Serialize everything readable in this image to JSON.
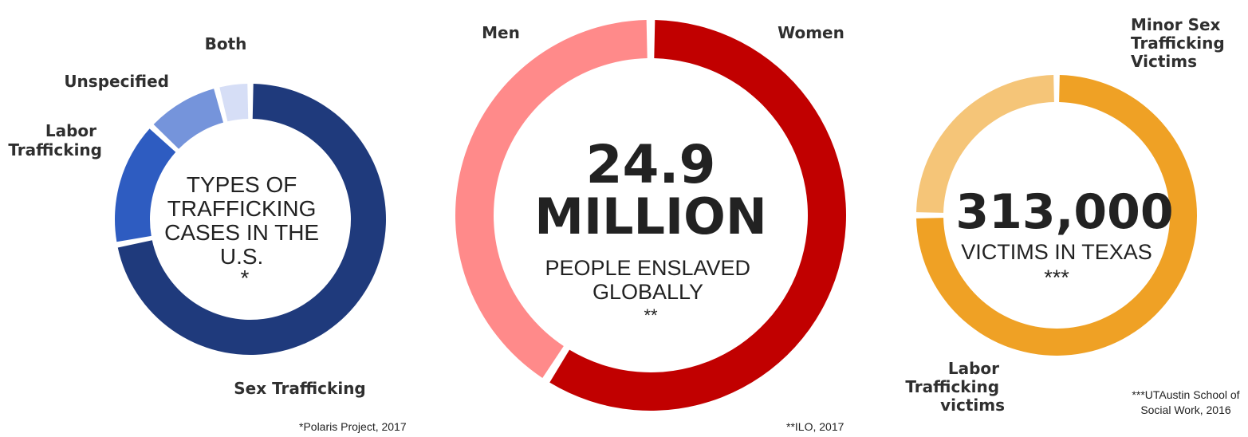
{
  "chart_data": [
    {
      "type": "pie",
      "center_text": [
        "TYPES OF",
        "TRAFFICKING",
        "CASES IN THE",
        "U.S.",
        "*"
      ],
      "slices": [
        {
          "label": "Sex Trafficking",
          "value": 72,
          "color": "#1f3a7c"
        },
        {
          "label": "Labor Trafficking",
          "value": 15,
          "color": "#2e5cc1"
        },
        {
          "label": "Unspecified",
          "value": 9,
          "color": "#7594db"
        },
        {
          "label": "Both",
          "value": 4,
          "color": "#d6def6"
        }
      ],
      "source": "*Polaris Project, 2017"
    },
    {
      "type": "pie",
      "center_text": [
        "24.9",
        "MILLION",
        "PEOPLE ENSLAVED",
        "GLOBALLY",
        "**"
      ],
      "slices": [
        {
          "label": "Women",
          "value": 59,
          "color": "#c10000"
        },
        {
          "label": "Men",
          "value": 41,
          "color": "#ff8a8a"
        }
      ],
      "source": "**ILO, 2017"
    },
    {
      "type": "pie",
      "center_text": [
        "313,000",
        "VICTIMS IN TEXAS",
        "***"
      ],
      "slices": [
        {
          "label": "Minor Sex Trafficking Victims",
          "value": 25,
          "color": "#f5c578"
        },
        {
          "label": "Labor Trafficking victims",
          "value": 75,
          "color": "#efa125"
        }
      ],
      "source": "***UTAustin School of Social Work, 2016"
    }
  ]
}
